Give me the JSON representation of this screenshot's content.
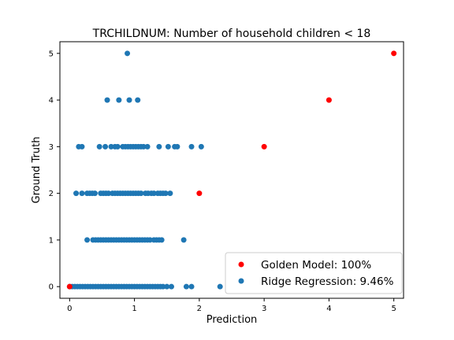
{
  "chart_data": {
    "type": "scatter",
    "title": "TRCHILDNUM: Number of household children < 18",
    "xlabel": "Prediction",
    "ylabel": "Ground Truth",
    "xlim": [
      -0.15,
      5.15
    ],
    "ylim": [
      -0.25,
      5.25
    ],
    "xticks": [
      0,
      1,
      2,
      3,
      4,
      5
    ],
    "yticks": [
      0,
      1,
      2,
      3,
      4,
      5
    ],
    "grid": false,
    "legend_position": "bottom-right",
    "series": [
      {
        "name": "Ridge Regression: 9.46%",
        "color": "#1f77b4",
        "points": [
          [
            0.0,
            0
          ],
          [
            0.04,
            0
          ],
          [
            0.08,
            0
          ],
          [
            0.12,
            0
          ],
          [
            0.16,
            0
          ],
          [
            0.2,
            0
          ],
          [
            0.24,
            0
          ],
          [
            0.28,
            0
          ],
          [
            0.32,
            0
          ],
          [
            0.36,
            0
          ],
          [
            0.4,
            0
          ],
          [
            0.44,
            0
          ],
          [
            0.48,
            0
          ],
          [
            0.52,
            0
          ],
          [
            0.56,
            0
          ],
          [
            0.6,
            0
          ],
          [
            0.64,
            0
          ],
          [
            0.68,
            0
          ],
          [
            0.72,
            0
          ],
          [
            0.76,
            0
          ],
          [
            0.8,
            0
          ],
          [
            0.84,
            0
          ],
          [
            0.88,
            0
          ],
          [
            0.92,
            0
          ],
          [
            0.96,
            0
          ],
          [
            1.0,
            0
          ],
          [
            1.04,
            0
          ],
          [
            1.08,
            0
          ],
          [
            1.12,
            0
          ],
          [
            1.16,
            0
          ],
          [
            1.2,
            0
          ],
          [
            1.24,
            0
          ],
          [
            1.28,
            0
          ],
          [
            1.32,
            0
          ],
          [
            1.36,
            0
          ],
          [
            1.4,
            0
          ],
          [
            1.44,
            0
          ],
          [
            1.5,
            0
          ],
          [
            1.57,
            0
          ],
          [
            1.8,
            0
          ],
          [
            1.88,
            0
          ],
          [
            2.32,
            0
          ],
          [
            0.27,
            1
          ],
          [
            0.36,
            1
          ],
          [
            0.4,
            1
          ],
          [
            0.44,
            1
          ],
          [
            0.48,
            1
          ],
          [
            0.52,
            1
          ],
          [
            0.56,
            1
          ],
          [
            0.6,
            1
          ],
          [
            0.64,
            1
          ],
          [
            0.68,
            1
          ],
          [
            0.72,
            1
          ],
          [
            0.76,
            1
          ],
          [
            0.8,
            1
          ],
          [
            0.84,
            1
          ],
          [
            0.88,
            1
          ],
          [
            0.92,
            1
          ],
          [
            0.96,
            1
          ],
          [
            1.0,
            1
          ],
          [
            1.04,
            1
          ],
          [
            1.08,
            1
          ],
          [
            1.12,
            1
          ],
          [
            1.16,
            1
          ],
          [
            1.2,
            1
          ],
          [
            1.24,
            1
          ],
          [
            1.3,
            1
          ],
          [
            1.34,
            1
          ],
          [
            1.38,
            1
          ],
          [
            1.42,
            1
          ],
          [
            1.76,
            1
          ],
          [
            0.1,
            2
          ],
          [
            0.19,
            2
          ],
          [
            0.27,
            2
          ],
          [
            0.31,
            2
          ],
          [
            0.35,
            2
          ],
          [
            0.39,
            2
          ],
          [
            0.48,
            2
          ],
          [
            0.52,
            2
          ],
          [
            0.56,
            2
          ],
          [
            0.6,
            2
          ],
          [
            0.66,
            2
          ],
          [
            0.7,
            2
          ],
          [
            0.74,
            2
          ],
          [
            0.78,
            2
          ],
          [
            0.82,
            2
          ],
          [
            0.86,
            2
          ],
          [
            0.9,
            2
          ],
          [
            0.94,
            2
          ],
          [
            0.98,
            2
          ],
          [
            1.02,
            2
          ],
          [
            1.06,
            2
          ],
          [
            1.1,
            2
          ],
          [
            1.17,
            2
          ],
          [
            1.21,
            2
          ],
          [
            1.26,
            2
          ],
          [
            1.3,
            2
          ],
          [
            1.36,
            2
          ],
          [
            1.4,
            2
          ],
          [
            1.44,
            2
          ],
          [
            1.48,
            2
          ],
          [
            1.55,
            2
          ],
          [
            0.14,
            3
          ],
          [
            0.19,
            3
          ],
          [
            0.46,
            3
          ],
          [
            0.55,
            3
          ],
          [
            0.64,
            3
          ],
          [
            0.7,
            3
          ],
          [
            0.74,
            3
          ],
          [
            0.82,
            3
          ],
          [
            0.86,
            3
          ],
          [
            0.9,
            3
          ],
          [
            0.94,
            3
          ],
          [
            0.98,
            3
          ],
          [
            1.02,
            3
          ],
          [
            1.06,
            3
          ],
          [
            1.1,
            3
          ],
          [
            1.14,
            3
          ],
          [
            1.2,
            3
          ],
          [
            1.38,
            3
          ],
          [
            1.52,
            3
          ],
          [
            1.62,
            3
          ],
          [
            1.66,
            3
          ],
          [
            1.88,
            3
          ],
          [
            2.03,
            3
          ],
          [
            0.58,
            4
          ],
          [
            0.76,
            4
          ],
          [
            0.92,
            4
          ],
          [
            1.05,
            4
          ],
          [
            0.89,
            5
          ]
        ]
      },
      {
        "name": "Golden Model: 100%",
        "color": "#ff0000",
        "points": [
          [
            0,
            0
          ],
          [
            2,
            2
          ],
          [
            3,
            3
          ],
          [
            4,
            4
          ],
          [
            5,
            5
          ]
        ]
      }
    ],
    "legend_order": [
      "Golden Model: 100%",
      "Ridge Regression: 9.46%"
    ]
  }
}
